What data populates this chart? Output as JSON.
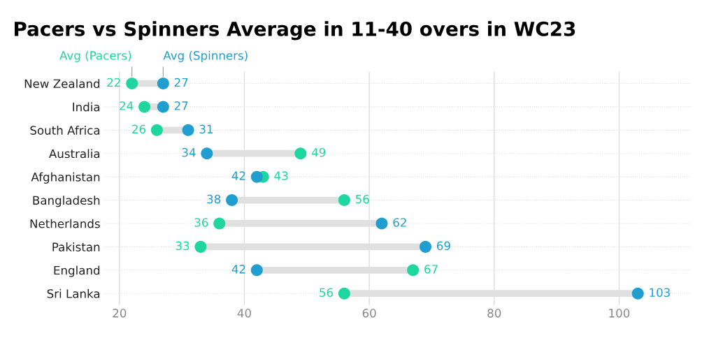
{
  "chart_data": {
    "type": "scatter",
    "title": "Pacers vs Spinners Average in 11-40 overs in WC23",
    "orientation": "horizontal",
    "categories": [
      "New Zealand",
      "India",
      "South Africa",
      "Australia",
      "Afghanistan",
      "Bangladesh",
      "Netherlands",
      "Pakistan",
      "England",
      "Sri Lanka"
    ],
    "series": [
      {
        "name": "Avg (Pacers)",
        "color": "#1fd6a0",
        "values": [
          22,
          24,
          26,
          49,
          43,
          56,
          36,
          33,
          67,
          56
        ]
      },
      {
        "name": "Avg (Spinners)",
        "color": "#1f9ecf",
        "values": [
          27,
          27,
          31,
          34,
          42,
          38,
          62,
          69,
          42,
          103
        ]
      }
    ],
    "xlim": [
      17.5,
      111.5
    ],
    "xticks": [
      20,
      40,
      60,
      80,
      100
    ],
    "grid": true,
    "data_labels": true,
    "marker": "circle"
  }
}
